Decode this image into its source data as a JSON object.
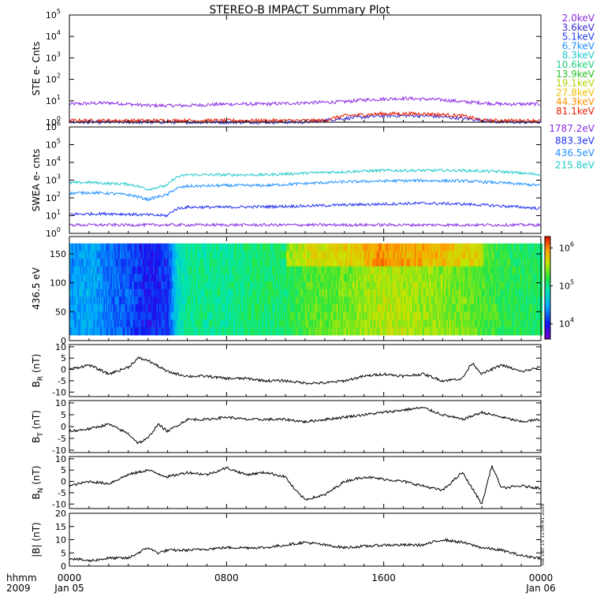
{
  "title": "STEREO-B IMPACT Summary Plot",
  "time_axis": {
    "corner_top": "hhmm",
    "corner_bottom": "2009",
    "ticks": [
      {
        "hour": 0,
        "top": "0000",
        "bottom": "Jan 05"
      },
      {
        "hour": 8,
        "top": "0800",
        "bottom": ""
      },
      {
        "hour": 16,
        "top": "1600",
        "bottom": ""
      },
      {
        "hour": 24,
        "top": "0000",
        "bottom": "Jan 06"
      }
    ],
    "range_hours": [
      0,
      24
    ],
    "minor_tick_hours": [
      1,
      2,
      3,
      4,
      5,
      6,
      7,
      9,
      10,
      11,
      12,
      13,
      14,
      15,
      17,
      18,
      19,
      20,
      21,
      22,
      23
    ]
  },
  "timestamp": "Tue Dec 15 11:06:41 2009",
  "legend_ste": [
    {
      "label": "2.0keV",
      "color": "#8a2be2"
    },
    {
      "label": "3.6keV",
      "color": "#3a2bd0"
    },
    {
      "label": "5.1keV",
      "color": "#1f3cf0"
    },
    {
      "label": "6.7keV",
      "color": "#1e90ff"
    },
    {
      "label": "8.3keV",
      "color": "#20c8c8"
    },
    {
      "label": "10.6keV",
      "color": "#20d080"
    },
    {
      "label": "13.9keV",
      "color": "#22c022"
    },
    {
      "label": "19.1keV",
      "color": "#b8d000"
    },
    {
      "label": "27.8keV",
      "color": "#f0c000"
    },
    {
      "label": "44.3keV",
      "color": "#ff9000"
    },
    {
      "label": "81.1keV",
      "color": "#e82000"
    }
  ],
  "legend_swea": [
    {
      "label": "1787.2eV",
      "color": "#8a2be2"
    },
    {
      "label": "883.3eV",
      "color": "#1f2ff0"
    },
    {
      "label": "436.5eV",
      "color": "#1e90ff"
    },
    {
      "label": "215.8eV",
      "color": "#20c8c8"
    }
  ],
  "colorbar": {
    "ticks": [
      {
        "label": "10",
        "exp": "6",
        "value": 6
      },
      {
        "label": "10",
        "exp": "5",
        "value": 5
      },
      {
        "label": "10",
        "exp": "4",
        "value": 4
      }
    ],
    "range_log": [
      3.6,
      6.3
    ]
  },
  "chart_data": [
    {
      "type": "line",
      "ylabel": "STE e- Cnts",
      "yscale": "log",
      "ylim_log": [
        0,
        5
      ],
      "y_ticks": [
        {
          "label": "10",
          "exp": "0",
          "value": 0
        },
        {
          "label": "10",
          "exp": "1",
          "value": 1
        },
        {
          "label": "10",
          "exp": "2",
          "value": 2
        },
        {
          "label": "10",
          "exp": "3",
          "value": 3
        },
        {
          "label": "10",
          "exp": "4",
          "value": 4
        },
        {
          "label": "10",
          "exp": "5",
          "value": 5
        }
      ],
      "series": [
        {
          "name": "2.0keV",
          "color": "#8a2be2",
          "x": [
            0,
            2,
            4,
            6,
            8,
            10,
            12,
            14,
            15,
            16,
            17,
            18,
            19,
            20,
            22,
            24
          ],
          "y": [
            7,
            8,
            6,
            6,
            7,
            7,
            8,
            9,
            11,
            12,
            13,
            12,
            11,
            9,
            7,
            7
          ]
        },
        {
          "name": "3.6keV",
          "color": "#3a2bd0",
          "x": [
            0,
            6,
            12,
            14,
            16,
            18,
            20,
            22,
            24
          ],
          "y": [
            1,
            1,
            1,
            1.5,
            2,
            2,
            1.5,
            1,
            1
          ]
        },
        {
          "name": "81.1keV",
          "color": "#e82000",
          "x": [
            13,
            14,
            16,
            18,
            20,
            21
          ],
          "y": [
            1.2,
            2,
            2.5,
            2.5,
            2,
            1.2
          ]
        }
      ]
    },
    {
      "type": "line",
      "ylabel": "SWEA e- cnts",
      "yscale": "log",
      "ylim_log": [
        0,
        6
      ],
      "y_ticks": [
        {
          "label": "10",
          "exp": "0",
          "value": 0
        },
        {
          "label": "10",
          "exp": "1",
          "value": 1
        },
        {
          "label": "10",
          "exp": "2",
          "value": 2
        },
        {
          "label": "10",
          "exp": "3",
          "value": 3
        },
        {
          "label": "10",
          "exp": "4",
          "value": 4
        },
        {
          "label": "10",
          "exp": "5",
          "value": 5
        },
        {
          "label": "10",
          "exp": "6",
          "value": 6
        }
      ],
      "series": [
        {
          "name": "215.8eV",
          "color": "#20c8c8",
          "x": [
            0,
            1,
            2,
            3,
            4,
            5,
            5.5,
            6,
            8,
            10,
            12,
            14,
            16,
            18,
            20,
            22,
            24
          ],
          "y": [
            700,
            750,
            650,
            600,
            300,
            500,
            1500,
            2000,
            2000,
            2000,
            2500,
            3000,
            3500,
            3500,
            3500,
            3000,
            2000
          ]
        },
        {
          "name": "436.5eV",
          "color": "#1e90ff",
          "x": [
            0,
            1,
            2,
            3,
            4,
            5,
            5.5,
            6,
            8,
            10,
            12,
            14,
            16,
            18,
            20,
            22,
            24
          ],
          "y": [
            180,
            200,
            180,
            150,
            80,
            150,
            350,
            450,
            500,
            500,
            650,
            800,
            900,
            950,
            900,
            700,
            500
          ]
        },
        {
          "name": "883.3eV",
          "color": "#1f2ff0",
          "x": [
            0,
            2,
            4,
            5,
            5.5,
            6,
            8,
            10,
            12,
            14,
            16,
            18,
            20,
            22,
            24
          ],
          "y": [
            12,
            13,
            11,
            10,
            25,
            30,
            30,
            32,
            35,
            40,
            45,
            50,
            45,
            35,
            25
          ]
        },
        {
          "name": "1787.2eV",
          "color": "#8a2be2",
          "x": [
            0,
            4,
            8,
            12,
            16,
            20,
            24
          ],
          "y": [
            3,
            3,
            3,
            3,
            3,
            3,
            3
          ]
        }
      ]
    },
    {
      "type": "heatmap",
      "ylabel": "436.5 eV",
      "ylim": [
        0,
        180
      ],
      "y_ticks": [
        {
          "label": "0",
          "value": 0
        },
        {
          "label": "50",
          "value": 50
        },
        {
          "label": "100",
          "value": 100
        },
        {
          "label": "150",
          "value": 150
        }
      ],
      "data_y_range": [
        10,
        168
      ],
      "colorscale": "rainbow",
      "columns_log_value": {
        "x": [
          0,
          1,
          2,
          3,
          4,
          5,
          5.5,
          6,
          8,
          10,
          11,
          12,
          14,
          16,
          18,
          20,
          21,
          22,
          24
        ],
        "v": [
          4.4,
          4.5,
          4.3,
          4.2,
          4.0,
          4.1,
          4.8,
          5.0,
          5.0,
          5.1,
          5.1,
          5.3,
          5.4,
          5.6,
          5.5,
          5.4,
          5.3,
          5.2,
          5.1
        ]
      }
    },
    {
      "type": "line",
      "ylabel": "BR (nT)",
      "ylabel_main": "B",
      "ylabel_sub": "R",
      "ylabel_unit": " (nT)",
      "ylim": [
        -12,
        11
      ],
      "y_ticks": [
        {
          "label": "10",
          "value": 10
        },
        {
          "label": "5",
          "value": 5
        },
        {
          "label": "0",
          "value": 0
        },
        {
          "label": "-5",
          "value": -5
        },
        {
          "label": "-10",
          "value": -10
        }
      ],
      "series": [
        {
          "name": "BR",
          "color": "#000000",
          "x": [
            0,
            1,
            2,
            3,
            3.5,
            4,
            5,
            6,
            7,
            8,
            9,
            10,
            11,
            12,
            13,
            14,
            15,
            16,
            17,
            18,
            19,
            20,
            20.5,
            21,
            22,
            23,
            24
          ],
          "y": [
            0,
            2,
            -2,
            1,
            5,
            4,
            -1,
            -3,
            -3,
            -4,
            -4,
            -5,
            -5,
            -6,
            -6,
            -5,
            -3,
            -2,
            -3,
            -2,
            -5,
            -4,
            3,
            -2,
            2,
            -1,
            1
          ]
        }
      ]
    },
    {
      "type": "line",
      "ylabel": "BT (nT)",
      "ylabel_main": "B",
      "ylabel_sub": "T",
      "ylabel_unit": " (nT)",
      "ylim": [
        -11,
        11
      ],
      "y_ticks": [
        {
          "label": "10",
          "value": 10
        },
        {
          "label": "5",
          "value": 5
        },
        {
          "label": "0",
          "value": 0
        },
        {
          "label": "-5",
          "value": -5
        },
        {
          "label": "-10",
          "value": -10
        }
      ],
      "series": [
        {
          "name": "BT",
          "color": "#000000",
          "x": [
            0,
            1,
            2,
            3,
            3.5,
            4,
            4.5,
            5,
            6,
            7,
            8,
            9,
            10,
            11,
            12,
            13,
            14,
            15,
            16,
            17,
            18,
            19,
            20,
            21,
            22,
            23,
            24
          ],
          "y": [
            -2,
            -1,
            1,
            -3,
            -7,
            -5,
            1,
            -2,
            3,
            3,
            4,
            3,
            3,
            3,
            2,
            3,
            4,
            5,
            6,
            7,
            8,
            5,
            3,
            6,
            4,
            2,
            3
          ]
        }
      ]
    },
    {
      "type": "line",
      "ylabel": "BN (nT)",
      "ylabel_main": "B",
      "ylabel_sub": "N",
      "ylabel_unit": " (nT)",
      "ylim": [
        -12,
        11
      ],
      "y_ticks": [
        {
          "label": "10",
          "value": 10
        },
        {
          "label": "5",
          "value": 5
        },
        {
          "label": "0",
          "value": 0
        },
        {
          "label": "-5",
          "value": -5
        },
        {
          "label": "-10",
          "value": -10
        }
      ],
      "series": [
        {
          "name": "BN",
          "color": "#000000",
          "x": [
            0,
            1,
            2,
            3,
            4,
            5,
            6,
            7,
            8,
            9,
            10,
            11,
            11.5,
            12,
            13,
            14,
            15,
            16,
            17,
            18,
            19,
            20,
            21,
            21.5,
            22,
            23,
            24
          ],
          "y": [
            -2,
            0,
            -1,
            3,
            5,
            2,
            4,
            3,
            6,
            3,
            4,
            2,
            -4,
            -8,
            -6,
            0,
            2,
            1,
            0,
            -2,
            -4,
            4,
            -10,
            7,
            -3,
            -2,
            -3
          ]
        }
      ]
    },
    {
      "type": "line",
      "ylabel": "|B| (nT)",
      "ylabel_main": "|B|",
      "ylabel_sub": "",
      "ylabel_unit": " (nT)",
      "ylim": [
        0,
        20
      ],
      "y_ticks": [
        {
          "label": "20",
          "value": 20
        },
        {
          "label": "15",
          "value": 15
        },
        {
          "label": "10",
          "value": 10
        },
        {
          "label": "5",
          "value": 5
        },
        {
          "label": "0",
          "value": 0
        }
      ],
      "series": [
        {
          "name": "|B|",
          "color": "#000000",
          "x": [
            0,
            1,
            2,
            3,
            4,
            4.5,
            5,
            6,
            8,
            10,
            11,
            12,
            13,
            14,
            16,
            18,
            19,
            20,
            21,
            22,
            23,
            24
          ],
          "y": [
            3,
            2,
            3,
            3,
            7,
            5,
            6,
            6,
            7,
            7,
            8,
            9,
            8,
            7,
            8,
            8,
            10,
            9,
            7,
            6,
            4,
            3
          ]
        }
      ]
    }
  ]
}
